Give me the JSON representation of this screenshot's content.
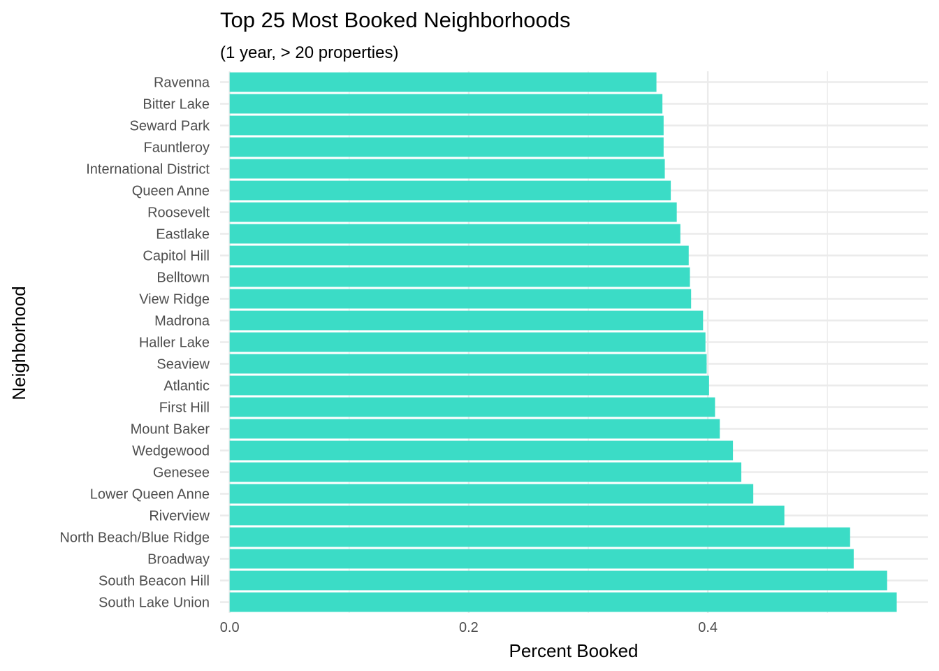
{
  "chart_data": {
    "type": "bar",
    "orientation": "horizontal",
    "title": "Top 25 Most Booked Neighborhoods",
    "subtitle": "(1 year, > 20 properties)",
    "xlabel": "Percent Booked",
    "ylabel": "Neighborhood",
    "xlim": [
      -0.008,
      0.584
    ],
    "x_ticks": [
      {
        "value": 0.0,
        "label": "0.0"
      },
      {
        "value": 0.2,
        "label": "0.2"
      },
      {
        "value": 0.4,
        "label": "0.4"
      }
    ],
    "x_minor_ticks": [
      0.1,
      0.3,
      0.5
    ],
    "grid": true,
    "legend": "none",
    "bar_color": "#3bdcc6",
    "categories": [
      "Ravenna",
      "Bitter Lake",
      "Seward Park",
      "Fauntleroy",
      "International District",
      "Queen Anne",
      "Roosevelt",
      "Eastlake",
      "Capitol Hill",
      "Belltown",
      "View Ridge",
      "Madrona",
      "Haller Lake",
      "Seaview",
      "Atlantic",
      "First Hill",
      "Mount Baker",
      "Wedgewood",
      "Genesee",
      "Lower Queen Anne",
      "Riverview",
      "North Beach/Blue Ridge",
      "Broadway",
      "South Beacon Hill",
      "South Lake Union"
    ],
    "values": [
      0.357,
      0.362,
      0.363,
      0.363,
      0.364,
      0.369,
      0.374,
      0.377,
      0.384,
      0.385,
      0.386,
      0.396,
      0.398,
      0.399,
      0.401,
      0.406,
      0.41,
      0.421,
      0.428,
      0.438,
      0.464,
      0.519,
      0.522,
      0.55,
      0.558
    ]
  }
}
